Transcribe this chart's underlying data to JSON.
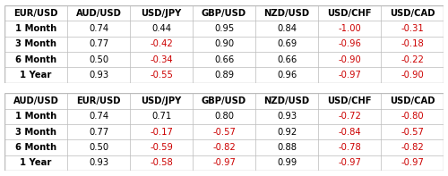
{
  "table1": {
    "col0_header": "EUR/USD",
    "headers": [
      "AUD/USD",
      "USD/JPY",
      "GBP/USD",
      "NZD/USD",
      "USD/CHF",
      "USD/CAD"
    ],
    "rows": [
      [
        "1 Month",
        "0.74",
        "0.44",
        "0.95",
        "0.84",
        "-1.00",
        "-0.31"
      ],
      [
        "3 Month",
        "0.77",
        "-0.42",
        "0.90",
        "0.69",
        "-0.96",
        "-0.18"
      ],
      [
        "6 Month",
        "0.50",
        "-0.34",
        "0.66",
        "0.66",
        "-0.90",
        "-0.22"
      ],
      [
        "1 Year",
        "0.93",
        "-0.55",
        "0.89",
        "0.96",
        "-0.97",
        "-0.90"
      ]
    ]
  },
  "table2": {
    "col0_header": "AUD/USD",
    "headers": [
      "EUR/USD",
      "USD/JPY",
      "GBP/USD",
      "NZD/USD",
      "USD/CHF",
      "USD/CAD"
    ],
    "rows": [
      [
        "1 Month",
        "0.74",
        "0.71",
        "0.80",
        "0.93",
        "-0.72",
        "-0.80"
      ],
      [
        "3 Month",
        "0.77",
        "-0.17",
        "-0.57",
        "0.92",
        "-0.84",
        "-0.57"
      ],
      [
        "6 Month",
        "0.50",
        "-0.59",
        "-0.82",
        "0.88",
        "-0.78",
        "-0.82"
      ],
      [
        "1 Year",
        "0.93",
        "-0.58",
        "-0.97",
        "0.99",
        "-0.97",
        "-0.97"
      ]
    ]
  },
  "positive_color": "#000000",
  "negative_color": "#cc0000",
  "header_color": "#000000",
  "bg_color": "#ffffff",
  "row_label_color": "#000000",
  "border_color": "#bbbbbb",
  "font_size": 7.2,
  "header_font_size": 7.2,
  "n_cols": 7
}
